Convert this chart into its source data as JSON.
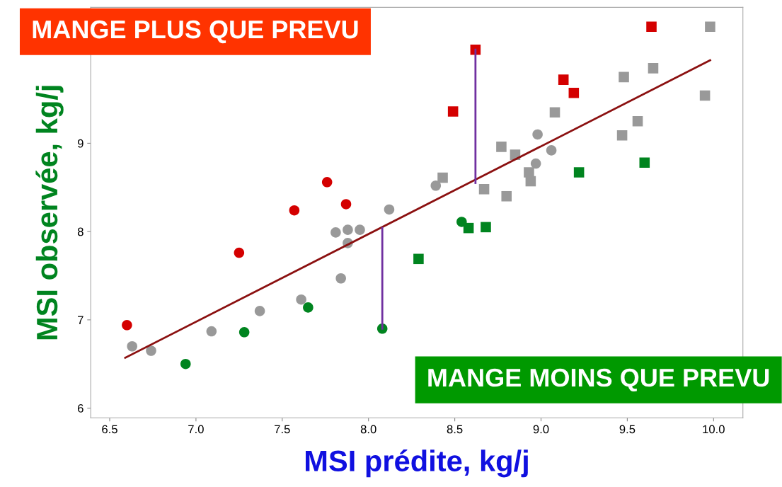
{
  "chart_data": {
    "type": "scatter",
    "xlabel": "MSI prédite, kg/j",
    "ylabel": "MSI observée, kg/j",
    "xlim": [
      6.39,
      10.17
    ],
    "ylim": [
      5.89,
      10.54
    ],
    "xticks": [
      {
        "value": 6.5,
        "label": "6.5"
      },
      {
        "value": 7,
        "label": "7.0"
      },
      {
        "value": 7.5,
        "label": "7.5"
      },
      {
        "value": 8,
        "label": "8.0"
      },
      {
        "value": 8.5,
        "label": "8.5"
      },
      {
        "value": 9,
        "label": "9.0"
      },
      {
        "value": 9.5,
        "label": "9.5"
      },
      {
        "value": 10,
        "label": "10.0"
      }
    ],
    "yticks": [
      6,
      7,
      8,
      9
    ],
    "grid": false,
    "legend": false,
    "annotations": [
      "MANGE PLUS QUE PREVU",
      "MANGE MOINS QUE PREVU"
    ],
    "series": [
      {
        "type": "line",
        "color": "#8b1010",
        "x": [
          6.59,
          9.98
        ],
        "values": [
          6.57,
          9.94
        ],
        "marker": "none",
        "line_style": "solid"
      },
      {
        "type": "line",
        "color": "#7030a0",
        "x": [
          8.62,
          8.62
        ],
        "values": [
          8.55,
          10.06
        ],
        "marker": "none",
        "line_style": "solid"
      },
      {
        "type": "line",
        "color": "#7030a0",
        "x": [
          8.08,
          8.08
        ],
        "values": [
          8.04,
          6.9
        ],
        "marker": "none",
        "line_style": "solid"
      },
      {
        "color": "#999999",
        "marker": "circle",
        "x": [
          6.63,
          6.74,
          7.09,
          7.37,
          7.61,
          7.84,
          7.81,
          7.88,
          7.88,
          7.95,
          8.12,
          8.39,
          8.98,
          9.06,
          8.97
        ],
        "values": [
          6.7,
          6.65,
          6.87,
          7.1,
          7.23,
          7.47,
          7.99,
          8.02,
          7.87,
          8.02,
          8.25,
          8.52,
          9.1,
          8.92,
          8.77
        ]
      },
      {
        "color": "#999999",
        "marker": "square",
        "x": [
          8.43,
          8.77,
          8.85,
          8.67,
          8.8,
          8.93,
          8.94,
          9.08,
          9.48,
          9.65,
          9.56,
          9.47,
          9.95,
          9.98
        ],
        "values": [
          8.61,
          8.96,
          8.87,
          8.48,
          8.4,
          8.67,
          8.57,
          9.35,
          9.75,
          9.85,
          9.25,
          9.09,
          9.54,
          10.32
        ]
      },
      {
        "color": "#d40000",
        "marker": "circle",
        "x": [
          6.6,
          7.25,
          7.57,
          7.76,
          7.87
        ],
        "values": [
          6.94,
          7.76,
          8.24,
          8.56,
          8.31
        ]
      },
      {
        "color": "#d40000",
        "marker": "square",
        "x": [
          8.49,
          8.62,
          9.13,
          9.19,
          9.64
        ],
        "values": [
          9.36,
          10.06,
          9.72,
          9.57,
          10.32
        ]
      },
      {
        "color": "#00841f",
        "marker": "circle",
        "x": [
          6.94,
          7.28,
          7.65,
          8.08,
          8.54
        ],
        "values": [
          6.5,
          6.86,
          7.14,
          6.9,
          8.11
        ]
      },
      {
        "color": "#00841f",
        "marker": "square",
        "x": [
          8.29,
          8.58,
          8.68,
          9.22,
          9.6
        ],
        "values": [
          7.69,
          8.04,
          8.05,
          8.67,
          8.78
        ]
      }
    ]
  }
}
